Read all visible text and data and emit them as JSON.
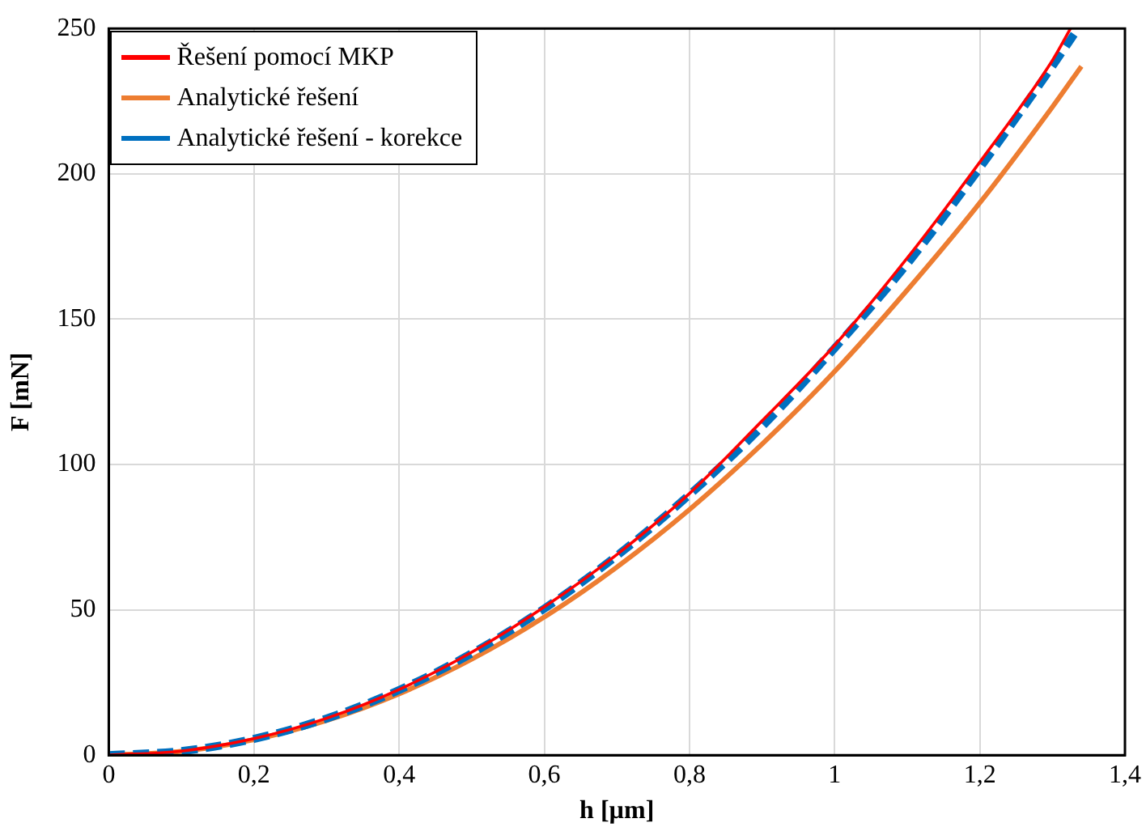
{
  "chart_data": {
    "type": "line",
    "xlabel": "h [µm]",
    "ylabel": "F [mN]",
    "xlim": [
      0,
      1.4
    ],
    "xticks": [
      {
        "value": 0,
        "label": "0"
      },
      {
        "value": 0.2,
        "label": "0,2"
      },
      {
        "value": 0.4,
        "label": "0,4"
      },
      {
        "value": 0.6,
        "label": "0,6"
      },
      {
        "value": 0.8,
        "label": "0,8"
      },
      {
        "value": 1,
        "label": "1"
      },
      {
        "value": 1.2,
        "label": "1,2"
      },
      {
        "value": 1.4,
        "label": "1,4"
      }
    ],
    "ylim": [
      0,
      250
    ],
    "yticks": [
      0,
      50,
      100,
      150,
      200,
      250
    ],
    "grid": true,
    "legend": "top left",
    "marker": "none",
    "series": [
      {
        "name": "Řešení pomocí MKP",
        "color": "#ff0000",
        "x": [
          0,
          0.1,
          0.2,
          0.3,
          0.4,
          0.5,
          0.6,
          0.7,
          0.8,
          0.9,
          1,
          1.1,
          1.2,
          1.3,
          1.325
        ],
        "values": [
          0,
          1.4,
          5.7,
          12.7,
          22.6,
          35.4,
          51,
          69,
          90,
          115,
          141,
          171,
          204,
          239,
          250
        ]
      },
      {
        "name": "Analytické řešení",
        "color": "#ed7d31",
        "x": [
          0,
          0.1,
          0.2,
          0.3,
          0.4,
          0.5,
          0.6,
          0.7,
          0.8,
          0.9,
          1,
          1.1,
          1.2,
          1.3,
          1.34
        ],
        "values": [
          0,
          1.3,
          5.3,
          11.9,
          21.1,
          33,
          47.5,
          64.7,
          84.5,
          107,
          132,
          160,
          190,
          223,
          237
        ]
      },
      {
        "name": "Analytické řešení - korekce",
        "color": "#0070c0",
        "line_style": "dashed",
        "x": [
          0,
          0.1,
          0.2,
          0.3,
          0.4,
          0.5,
          0.6,
          0.7,
          0.8,
          0.9,
          1,
          1.1,
          1.2,
          1.3,
          1.33
        ],
        "values": [
          0,
          1.4,
          5.6,
          12.6,
          22.4,
          35,
          50.4,
          68.6,
          89.6,
          113,
          140,
          169,
          202,
          237,
          248
        ]
      }
    ]
  }
}
